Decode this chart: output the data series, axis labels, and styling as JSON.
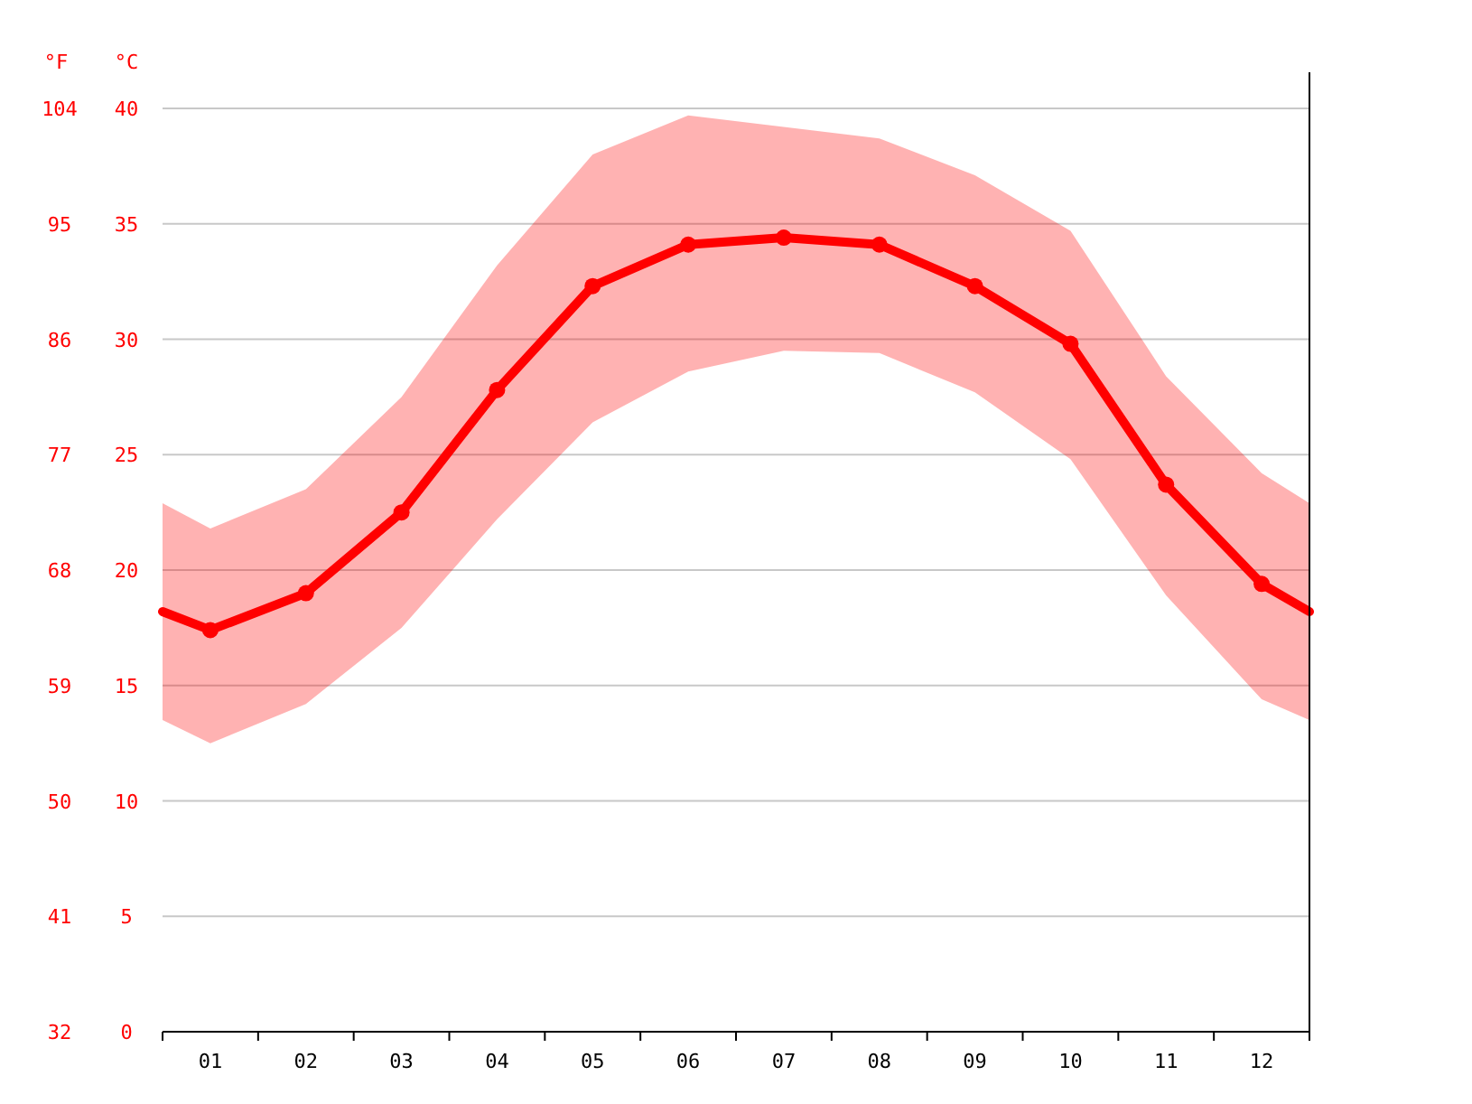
{
  "chart_data": {
    "type": "line",
    "ylabel": "°C",
    "y2label": "°F",
    "x": [
      0.5,
      1,
      2,
      3,
      4,
      5,
      6,
      7,
      8,
      9,
      10,
      11,
      12,
      12.5
    ],
    "xlim": [
      0.5,
      12.5
    ],
    "xticks": [
      {
        "value": 0.5,
        "label": null
      },
      {
        "value": 1,
        "label": "01"
      },
      {
        "value": 1.5,
        "label": null
      },
      {
        "value": 2,
        "label": "02"
      },
      {
        "value": 2.5,
        "label": null
      },
      {
        "value": 3,
        "label": "03"
      },
      {
        "value": 3.5,
        "label": null
      },
      {
        "value": 4,
        "label": "04"
      },
      {
        "value": 4.5,
        "label": null
      },
      {
        "value": 5,
        "label": "05"
      },
      {
        "value": 5.5,
        "label": null
      },
      {
        "value": 6,
        "label": "06"
      },
      {
        "value": 6.5,
        "label": null
      },
      {
        "value": 7,
        "label": "07"
      },
      {
        "value": 7.5,
        "label": null
      },
      {
        "value": 8,
        "label": "08"
      },
      {
        "value": 8.5,
        "label": null
      },
      {
        "value": 9,
        "label": "09"
      },
      {
        "value": 9.5,
        "label": null
      },
      {
        "value": 10,
        "label": "10"
      },
      {
        "value": 10.5,
        "label": null
      },
      {
        "value": 11,
        "label": "11"
      },
      {
        "value": 11.5,
        "label": null
      },
      {
        "value": 12,
        "label": "12"
      },
      {
        "value": 12.5,
        "label": null
      }
    ],
    "ylim": [
      0,
      40
    ],
    "yticks": [
      0,
      5,
      10,
      15,
      20,
      25,
      30,
      35,
      40
    ],
    "y2lim": [
      32,
      104
    ],
    "y2ticks": [
      32,
      41,
      50,
      59,
      68,
      77,
      86,
      95,
      104
    ],
    "grid": "y",
    "marker": "circle",
    "line_style": "solid",
    "series": [
      {
        "color": "#ff0000",
        "values": [
          18.2,
          17.4,
          19.0,
          22.5,
          27.8,
          32.3,
          34.1,
          34.4,
          34.1,
          32.3,
          29.8,
          23.7,
          19.4,
          18.2
        ],
        "lower": [
          13.5,
          12.5,
          14.2,
          17.5,
          22.2,
          26.4,
          28.6,
          29.5,
          29.4,
          27.7,
          24.8,
          18.9,
          14.4,
          13.5
        ],
        "upper": [
          22.9,
          21.8,
          23.5,
          27.5,
          33.2,
          38.0,
          39.7,
          39.2,
          38.7,
          37.1,
          34.7,
          28.4,
          24.2,
          22.9
        ]
      }
    ]
  }
}
